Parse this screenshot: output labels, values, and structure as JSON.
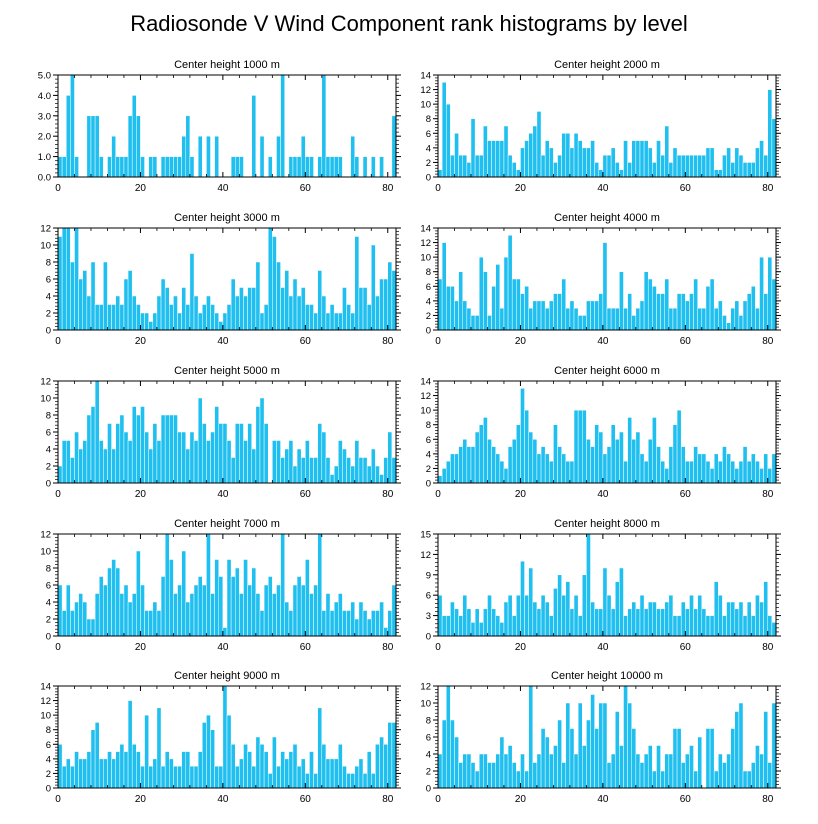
{
  "figure": {
    "title": "Radiosonde V Wind Component rank histograms by level",
    "bar_color": "#1fbfef",
    "bar_edge_color": "#ffffff",
    "axis_color": "#000000"
  },
  "chart_data": [
    {
      "type": "bar",
      "title": "Center height 1000 m",
      "xlim": [
        0,
        82
      ],
      "ylim": [
        0,
        5
      ],
      "yticks": [
        "0.0",
        "1.0",
        "2.0",
        "3.0",
        "4.0",
        "5.0"
      ],
      "xticks": [
        "0",
        "20",
        "40",
        "60",
        "80"
      ],
      "values": [
        1,
        1,
        4,
        5,
        1,
        0,
        0,
        3,
        3,
        3,
        1,
        0,
        1,
        2,
        1,
        1,
        1,
        3,
        4,
        3,
        1,
        0,
        1,
        1,
        0,
        1,
        1,
        1,
        1,
        1,
        2,
        3,
        1,
        0,
        2,
        0,
        2,
        0,
        2,
        0,
        0,
        0,
        1,
        1,
        1,
        0,
        0,
        4,
        0,
        2,
        0,
        1,
        0,
        2,
        5,
        0,
        1,
        1,
        1,
        2,
        1,
        1,
        0,
        1,
        5,
        1,
        1,
        1,
        1,
        0,
        0,
        2,
        1,
        0,
        1,
        0,
        1,
        0,
        1,
        0,
        0,
        3
      ]
    },
    {
      "type": "bar",
      "title": "Center height 2000 m",
      "xlim": [
        0,
        82
      ],
      "ylim": [
        0,
        14
      ],
      "yticks": [
        "0",
        "2",
        "4",
        "6",
        "8",
        "10",
        "12",
        "14"
      ],
      "xticks": [
        "0",
        "20",
        "40",
        "60",
        "80"
      ],
      "values": [
        1,
        13,
        10,
        3,
        6,
        3,
        3,
        2,
        8,
        3,
        3,
        7,
        5,
        5,
        5,
        5,
        7,
        3,
        2,
        1,
        4,
        5,
        6,
        7,
        9,
        3,
        5,
        4,
        2,
        3,
        6,
        6,
        4,
        6,
        5,
        4,
        4,
        5,
        2,
        1,
        3,
        3,
        4,
        2,
        1,
        5,
        2,
        5,
        5,
        5,
        5,
        4,
        2,
        5,
        3,
        7,
        2,
        4,
        3,
        3,
        3,
        3,
        3,
        3,
        3,
        4,
        4,
        1,
        1,
        3,
        4,
        2,
        4,
        3,
        2,
        2,
        2,
        4,
        5,
        3,
        12,
        8
      ]
    },
    {
      "type": "bar",
      "title": "Center height 3000 m",
      "xlim": [
        0,
        82
      ],
      "ylim": [
        0,
        12
      ],
      "yticks": [
        "0",
        "2",
        "4",
        "6",
        "8",
        "10",
        "12"
      ],
      "xticks": [
        "0",
        "20",
        "40",
        "60",
        "80"
      ],
      "values": [
        11,
        12,
        12,
        8,
        12,
        6,
        7,
        4,
        8,
        3,
        3,
        8,
        3,
        3,
        4,
        3,
        6,
        7,
        4,
        3,
        2,
        2,
        1,
        2,
        4,
        6,
        5,
        3,
        4,
        2,
        5,
        3,
        9,
        4,
        2,
        3,
        4,
        3,
        2,
        1,
        2,
        3,
        6,
        4,
        5,
        4,
        5,
        5,
        8,
        2,
        3,
        12,
        11,
        8,
        5,
        7,
        4,
        6,
        4,
        5,
        3,
        3,
        2,
        7,
        4,
        2,
        3,
        2,
        2,
        5,
        3,
        2,
        11,
        5,
        5,
        3,
        10,
        4,
        6,
        6,
        8,
        7
      ]
    },
    {
      "type": "bar",
      "title": "Center height 4000 m",
      "xlim": [
        0,
        82
      ],
      "ylim": [
        0,
        14
      ],
      "yticks": [
        "0",
        "2",
        "4",
        "6",
        "8",
        "10",
        "12",
        "14"
      ],
      "xticks": [
        "0",
        "20",
        "40",
        "60",
        "80"
      ],
      "values": [
        7,
        12,
        6,
        6,
        4,
        8,
        4,
        3,
        2,
        2,
        10,
        8,
        2,
        6,
        9,
        3,
        10,
        13,
        7,
        7,
        5,
        6,
        3,
        4,
        4,
        4,
        3,
        4,
        5,
        5,
        7,
        3,
        4,
        3,
        2,
        2,
        4,
        4,
        4,
        5,
        12,
        3,
        3,
        3,
        8,
        3,
        5,
        2,
        3,
        4,
        8,
        7,
        6,
        5,
        5,
        7,
        3,
        3,
        5,
        5,
        4,
        5,
        7,
        3,
        3,
        6,
        7,
        3,
        4,
        2,
        1,
        3,
        4,
        2,
        4,
        5,
        6,
        3,
        10,
        5,
        10,
        7
      ]
    },
    {
      "type": "bar",
      "title": "Center height 5000 m",
      "xlim": [
        0,
        82
      ],
      "ylim": [
        0,
        12
      ],
      "yticks": [
        "0",
        "2",
        "4",
        "6",
        "8",
        "10",
        "12"
      ],
      "xticks": [
        "0",
        "20",
        "40",
        "60",
        "80"
      ],
      "values": [
        2,
        5,
        5,
        3,
        6,
        4,
        5,
        8,
        9,
        12,
        5,
        4,
        7,
        4,
        7,
        8,
        6,
        5,
        9,
        8,
        9,
        6,
        4,
        7,
        5,
        8,
        8,
        8,
        8,
        6,
        6,
        4,
        6,
        5,
        10,
        7,
        5,
        6,
        9,
        7,
        7,
        5,
        3,
        7,
        7,
        5,
        7,
        4,
        9,
        10,
        7,
        0,
        5,
        5,
        3,
        4,
        5,
        2,
        4,
        3,
        5,
        3,
        3,
        7,
        6,
        3,
        1,
        2,
        5,
        4,
        3,
        2,
        5,
        3,
        3,
        2,
        4,
        2,
        1,
        3,
        6,
        3
      ]
    },
    {
      "type": "bar",
      "title": "Center height 6000 m",
      "xlim": [
        0,
        82
      ],
      "ylim": [
        0,
        14
      ],
      "yticks": [
        "0",
        "2",
        "4",
        "6",
        "8",
        "10",
        "12",
        "14"
      ],
      "xticks": [
        "0",
        "20",
        "40",
        "60",
        "80"
      ],
      "values": [
        1,
        2,
        3,
        4,
        4,
        5,
        6,
        5,
        5,
        7,
        8,
        9,
        6,
        5,
        4,
        3,
        2,
        5,
        6,
        8,
        13,
        10,
        7,
        6,
        4,
        5,
        4,
        3,
        8,
        5,
        4,
        3,
        3,
        10,
        10,
        10,
        6,
        5,
        8,
        7,
        4,
        5,
        8,
        6,
        7,
        3,
        9,
        6,
        7,
        4,
        3,
        6,
        9,
        5,
        3,
        2,
        5,
        8,
        10,
        5,
        3,
        3,
        5,
        4,
        4,
        3,
        2,
        4,
        3,
        5,
        4,
        3,
        2,
        3,
        5,
        3,
        4,
        3,
        2,
        4,
        2,
        4
      ]
    },
    {
      "type": "bar",
      "title": "Center height 7000 m",
      "xlim": [
        0,
        82
      ],
      "ylim": [
        0,
        12
      ],
      "yticks": [
        "0",
        "2",
        "4",
        "6",
        "8",
        "10",
        "12"
      ],
      "xticks": [
        "0",
        "20",
        "40",
        "60",
        "80"
      ],
      "values": [
        6,
        3,
        6,
        3,
        4,
        5,
        4,
        2,
        2,
        5,
        7,
        6,
        8,
        9,
        8,
        5,
        6,
        4,
        5,
        10,
        6,
        3,
        3,
        4,
        3,
        7,
        12,
        9,
        5,
        6,
        10,
        4,
        5,
        6,
        7,
        6,
        12,
        5,
        9,
        7,
        1,
        9,
        7,
        8,
        5,
        9,
        6,
        8,
        5,
        3,
        6,
        7,
        5,
        6,
        12,
        4,
        3,
        6,
        7,
        6,
        9,
        5,
        6,
        12,
        3,
        5,
        3,
        4,
        5,
        3,
        3,
        4,
        2,
        4,
        3,
        2,
        3,
        3,
        4,
        1,
        3,
        6
      ]
    },
    {
      "type": "bar",
      "title": "Center height 8000 m",
      "xlim": [
        0,
        82
      ],
      "ylim": [
        0,
        15
      ],
      "yticks": [
        "0",
        "3",
        "6",
        "9",
        "12",
        "15"
      ],
      "xticks": [
        "0",
        "20",
        "40",
        "60",
        "80"
      ],
      "values": [
        6,
        3,
        3,
        5,
        4,
        3,
        6,
        4,
        2,
        4,
        2,
        4,
        6,
        4,
        3,
        2,
        5,
        6,
        3,
        6,
        11,
        6,
        10,
        5,
        4,
        6,
        5,
        3,
        7,
        9,
        6,
        8,
        4,
        6,
        3,
        9,
        15,
        5,
        4,
        4,
        10,
        6,
        4,
        8,
        10,
        3,
        4,
        5,
        4,
        6,
        4,
        5,
        5,
        4,
        4,
        5,
        6,
        3,
        3,
        5,
        4,
        6,
        4,
        6,
        4,
        3,
        3,
        8,
        6,
        3,
        5,
        5,
        4,
        5,
        3,
        5,
        3,
        6,
        5,
        8,
        3,
        2
      ]
    },
    {
      "type": "bar",
      "title": "Center height 9000 m",
      "xlim": [
        0,
        82
      ],
      "ylim": [
        0,
        14
      ],
      "yticks": [
        "0",
        "2",
        "4",
        "6",
        "8",
        "10",
        "12",
        "14"
      ],
      "xticks": [
        "0",
        "20",
        "40",
        "60",
        "80"
      ],
      "values": [
        6,
        3,
        4,
        3,
        5,
        4,
        4,
        5,
        8,
        9,
        4,
        4,
        5,
        4,
        5,
        6,
        5,
        12,
        6,
        5,
        3,
        10,
        3,
        4,
        11,
        3,
        5,
        4,
        3,
        3,
        5,
        5,
        3,
        3,
        5,
        9,
        10,
        8,
        3,
        3,
        14,
        10,
        6,
        3,
        4,
        6,
        5,
        3,
        7,
        6,
        5,
        2,
        7,
        3,
        5,
        4,
        5,
        6,
        3,
        4,
        2,
        5,
        2,
        11,
        6,
        4,
        4,
        4,
        6,
        3,
        2,
        2,
        3,
        4,
        2,
        5,
        2,
        6,
        7,
        6,
        9,
        9
      ]
    },
    {
      "type": "bar",
      "title": "Center height 10000 m",
      "xlim": [
        0,
        82
      ],
      "ylim": [
        0,
        12
      ],
      "yticks": [
        "0",
        "2",
        "4",
        "6",
        "8",
        "10",
        "12"
      ],
      "xticks": [
        "0",
        "20",
        "40",
        "60",
        "80"
      ],
      "values": [
        4,
        8,
        12,
        8,
        6,
        3,
        4,
        4,
        3,
        2,
        4,
        4,
        3,
        3,
        4,
        6,
        4,
        5,
        3,
        2,
        4,
        2,
        12,
        3,
        4,
        7,
        6,
        4,
        5,
        8,
        3,
        10,
        7,
        4,
        10,
        5,
        8,
        11,
        7,
        10,
        10,
        3,
        4,
        9,
        5,
        12,
        10,
        7,
        4,
        3,
        4,
        5,
        2,
        5,
        2,
        4,
        4,
        7,
        7,
        3,
        4,
        5,
        2,
        6,
        0,
        7,
        7,
        2,
        4,
        3,
        4,
        7,
        9,
        10,
        2,
        2,
        3,
        5,
        4,
        9,
        3,
        10
      ]
    }
  ]
}
